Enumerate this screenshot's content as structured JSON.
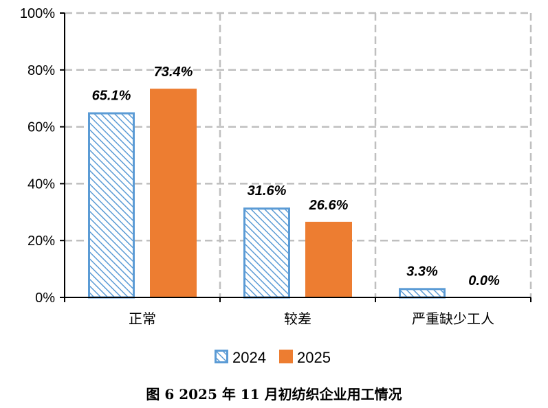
{
  "caption": "图 6   2025 年 11 月初纺织企业用工情况",
  "chart_data": {
    "type": "bar",
    "categories": [
      "正常",
      "较差",
      "严重缺少工人"
    ],
    "series": [
      {
        "name": "2024",
        "values": [
          65.1,
          31.6,
          3.3
        ],
        "labels": [
          "65.1%",
          "31.6%",
          "3.3%"
        ],
        "color": "#5b9bd5",
        "pattern": "diagonal-hatch"
      },
      {
        "name": "2025",
        "values": [
          73.4,
          26.6,
          0.0
        ],
        "labels": [
          "73.4%",
          "26.6%",
          "0.0%"
        ],
        "color": "#ed7d31",
        "pattern": "solid"
      }
    ],
    "ylim": [
      0,
      100
    ],
    "yticks": [
      0,
      20,
      40,
      60,
      80,
      100
    ],
    "ytick_labels": [
      "0%",
      "20%",
      "40%",
      "60%",
      "80%",
      "100%"
    ],
    "grid": true,
    "legend_position": "bottom"
  }
}
